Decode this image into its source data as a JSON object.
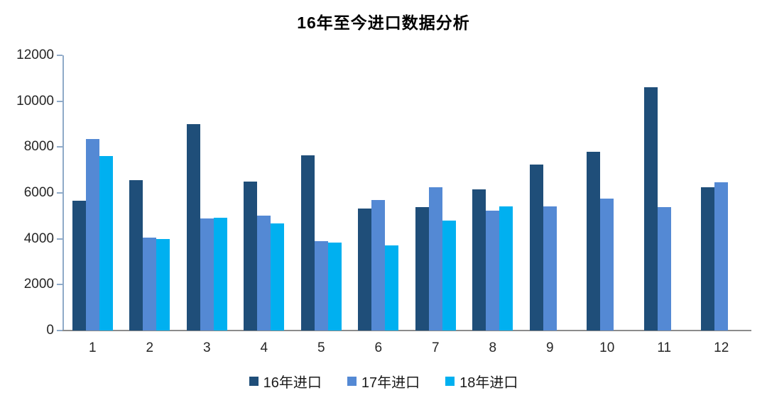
{
  "chart_data": {
    "type": "bar",
    "title": "16年至今进口数据分析",
    "categories": [
      "1",
      "2",
      "3",
      "4",
      "5",
      "6",
      "7",
      "8",
      "9",
      "10",
      "11",
      "12"
    ],
    "series": [
      {
        "name": "16年进口",
        "color": "#1F4E79",
        "values": [
          5660,
          6560,
          9010,
          6500,
          7650,
          5310,
          5390,
          6150,
          7230,
          7790,
          10610,
          6250
        ]
      },
      {
        "name": "17年进口",
        "color": "#5489D4",
        "values": [
          8350,
          4050,
          4880,
          5000,
          3890,
          5690,
          6260,
          5230,
          5410,
          5740,
          5370,
          6450
        ]
      },
      {
        "name": "18年进口",
        "color": "#00B0F0",
        "values": [
          7620,
          3980,
          4920,
          4660,
          3850,
          3700,
          4790,
          5400,
          null,
          null,
          null,
          null
        ]
      }
    ],
    "xlabel": "",
    "ylabel": "",
    "ylim": [
      0,
      12000
    ],
    "yticks": [
      0,
      2000,
      4000,
      6000,
      8000,
      10000,
      12000
    ],
    "grid": false,
    "legend_position": "bottom"
  }
}
